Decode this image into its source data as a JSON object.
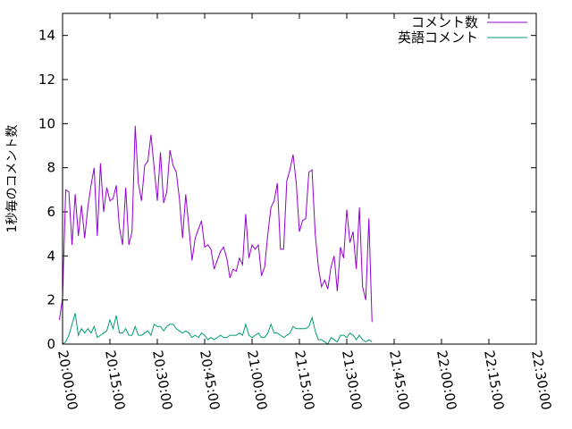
{
  "chart_data": {
    "type": "line",
    "ylabel": "1秒毎のコメント数",
    "ylim": [
      0,
      15
    ],
    "yticks": [
      0,
      2,
      4,
      6,
      8,
      10,
      12,
      14
    ],
    "xlim": [
      "20:00:00",
      "22:30:00"
    ],
    "xticks": [
      "20:00:00",
      "20:15:00",
      "20:30:00",
      "20:45:00",
      "21:00:00",
      "21:15:00",
      "21:30:00",
      "21:45:00",
      "22:00:00",
      "22:15:00",
      "22:30:00"
    ],
    "grid": false,
    "legend_position": "top-right",
    "series": [
      {
        "name": "コメント数",
        "color": "#9400d3",
        "points": [
          [
            "19:59:00",
            1.1
          ],
          [
            "20:00:00",
            2.1
          ],
          [
            "20:01:00",
            7.0
          ],
          [
            "20:02:00",
            6.9
          ],
          [
            "20:03:00",
            4.5
          ],
          [
            "20:04:00",
            6.8
          ],
          [
            "20:05:00",
            4.9
          ],
          [
            "20:06:00",
            6.3
          ],
          [
            "20:07:00",
            4.8
          ],
          [
            "20:08:00",
            6.2
          ],
          [
            "20:09:00",
            7.2
          ],
          [
            "20:10:00",
            8.0
          ],
          [
            "20:11:00",
            4.9
          ],
          [
            "20:12:00",
            8.2
          ],
          [
            "20:13:00",
            6.0
          ],
          [
            "20:14:00",
            7.1
          ],
          [
            "20:15:00",
            6.5
          ],
          [
            "20:16:00",
            6.6
          ],
          [
            "20:17:00",
            7.2
          ],
          [
            "20:18:00",
            5.3
          ],
          [
            "20:19:00",
            4.5
          ],
          [
            "20:20:00",
            7.1
          ],
          [
            "20:21:00",
            4.5
          ],
          [
            "20:22:00",
            5.1
          ],
          [
            "20:23:00",
            9.9
          ],
          [
            "20:24:00",
            7.3
          ],
          [
            "20:25:00",
            6.5
          ],
          [
            "20:26:00",
            8.1
          ],
          [
            "20:27:00",
            8.3
          ],
          [
            "20:28:00",
            9.5
          ],
          [
            "20:29:00",
            8.0
          ],
          [
            "20:30:00",
            6.5
          ],
          [
            "20:31:00",
            8.7
          ],
          [
            "20:32:00",
            6.4
          ],
          [
            "20:33:00",
            6.9
          ],
          [
            "20:34:00",
            8.8
          ],
          [
            "20:35:00",
            8.1
          ],
          [
            "20:36:00",
            7.8
          ],
          [
            "20:37:00",
            6.6
          ],
          [
            "20:38:00",
            4.8
          ],
          [
            "20:39:00",
            6.8
          ],
          [
            "20:40:00",
            5.3
          ],
          [
            "20:41:00",
            3.8
          ],
          [
            "20:42:00",
            4.8
          ],
          [
            "20:43:00",
            5.2
          ],
          [
            "20:44:00",
            5.6
          ],
          [
            "20:45:00",
            4.4
          ],
          [
            "20:46:00",
            4.5
          ],
          [
            "20:47:00",
            4.3
          ],
          [
            "20:48:00",
            3.4
          ],
          [
            "20:49:00",
            3.8
          ],
          [
            "20:50:00",
            4.2
          ],
          [
            "20:51:00",
            4.4
          ],
          [
            "20:52:00",
            3.9
          ],
          [
            "20:53:00",
            3.0
          ],
          [
            "20:54:00",
            3.4
          ],
          [
            "20:55:00",
            3.3
          ],
          [
            "20:56:00",
            3.9
          ],
          [
            "20:57:00",
            3.6
          ],
          [
            "20:58:00",
            5.9
          ],
          [
            "20:59:00",
            3.9
          ],
          [
            "21:00:00",
            4.5
          ],
          [
            "21:01:00",
            4.3
          ],
          [
            "21:02:00",
            4.5
          ],
          [
            "21:03:00",
            3.1
          ],
          [
            "21:04:00",
            3.5
          ],
          [
            "21:05:00",
            5.0
          ],
          [
            "21:06:00",
            6.2
          ],
          [
            "21:07:00",
            6.5
          ],
          [
            "21:08:00",
            7.3
          ],
          [
            "21:09:00",
            4.3
          ],
          [
            "21:10:00",
            4.3
          ],
          [
            "21:11:00",
            7.4
          ],
          [
            "21:12:00",
            7.9
          ],
          [
            "21:13:00",
            8.6
          ],
          [
            "21:14:00",
            7.3
          ],
          [
            "21:15:00",
            5.1
          ],
          [
            "21:16:00",
            5.6
          ],
          [
            "21:17:00",
            5.7
          ],
          [
            "21:18:00",
            7.8
          ],
          [
            "21:19:00",
            7.9
          ],
          [
            "21:20:00",
            5.0
          ],
          [
            "21:21:00",
            3.5
          ],
          [
            "21:22:00",
            2.6
          ],
          [
            "21:23:00",
            2.9
          ],
          [
            "21:24:00",
            2.5
          ],
          [
            "21:25:00",
            3.5
          ],
          [
            "21:26:00",
            4.0
          ],
          [
            "21:27:00",
            2.4
          ],
          [
            "21:28:00",
            4.4
          ],
          [
            "21:29:00",
            3.9
          ],
          [
            "21:30:00",
            6.1
          ],
          [
            "21:31:00",
            4.6
          ],
          [
            "21:32:00",
            5.1
          ],
          [
            "21:33:00",
            3.4
          ],
          [
            "21:34:00",
            6.2
          ],
          [
            "21:35:00",
            2.6
          ],
          [
            "21:36:00",
            2.0
          ],
          [
            "21:37:00",
            5.7
          ],
          [
            "21:38:00",
            1.0
          ]
        ]
      },
      {
        "name": "英語コメント",
        "color": "#009e73",
        "points": [
          [
            "20:00:00",
            0.0
          ],
          [
            "20:01:00",
            0.1
          ],
          [
            "20:02:00",
            0.4
          ],
          [
            "20:03:00",
            0.9
          ],
          [
            "20:04:00",
            1.4
          ],
          [
            "20:05:00",
            0.4
          ],
          [
            "20:06:00",
            0.7
          ],
          [
            "20:07:00",
            0.5
          ],
          [
            "20:08:00",
            0.7
          ],
          [
            "20:09:00",
            0.5
          ],
          [
            "20:10:00",
            0.8
          ],
          [
            "20:11:00",
            0.3
          ],
          [
            "20:12:00",
            0.4
          ],
          [
            "20:13:00",
            0.5
          ],
          [
            "20:14:00",
            0.6
          ],
          [
            "20:15:00",
            1.1
          ],
          [
            "20:16:00",
            0.7
          ],
          [
            "20:17:00",
            1.3
          ],
          [
            "20:18:00",
            0.5
          ],
          [
            "20:19:00",
            0.5
          ],
          [
            "20:20:00",
            0.7
          ],
          [
            "20:21:00",
            0.4
          ],
          [
            "20:22:00",
            0.4
          ],
          [
            "20:23:00",
            0.8
          ],
          [
            "20:24:00",
            0.4
          ],
          [
            "20:25:00",
            0.4
          ],
          [
            "20:26:00",
            0.5
          ],
          [
            "20:27:00",
            0.6
          ],
          [
            "20:28:00",
            0.4
          ],
          [
            "20:29:00",
            0.9
          ],
          [
            "20:30:00",
            0.8
          ],
          [
            "20:31:00",
            0.8
          ],
          [
            "20:32:00",
            0.6
          ],
          [
            "20:33:00",
            0.8
          ],
          [
            "20:34:00",
            0.9
          ],
          [
            "20:35:00",
            0.9
          ],
          [
            "20:36:00",
            0.7
          ],
          [
            "20:37:00",
            0.6
          ],
          [
            "20:38:00",
            0.5
          ],
          [
            "20:39:00",
            0.6
          ],
          [
            "20:40:00",
            0.5
          ],
          [
            "20:41:00",
            0.3
          ],
          [
            "20:42:00",
            0.4
          ],
          [
            "20:43:00",
            0.3
          ],
          [
            "20:44:00",
            0.5
          ],
          [
            "20:45:00",
            0.4
          ],
          [
            "20:46:00",
            0.2
          ],
          [
            "20:47:00",
            0.3
          ],
          [
            "20:48:00",
            0.2
          ],
          [
            "20:49:00",
            0.3
          ],
          [
            "20:50:00",
            0.4
          ],
          [
            "20:51:00",
            0.3
          ],
          [
            "20:52:00",
            0.3
          ],
          [
            "20:53:00",
            0.4
          ],
          [
            "20:54:00",
            0.4
          ],
          [
            "20:55:00",
            0.4
          ],
          [
            "20:56:00",
            0.5
          ],
          [
            "20:57:00",
            0.4
          ],
          [
            "20:58:00",
            0.9
          ],
          [
            "20:59:00",
            0.4
          ],
          [
            "21:00:00",
            0.3
          ],
          [
            "21:01:00",
            0.4
          ],
          [
            "21:02:00",
            0.5
          ],
          [
            "21:03:00",
            0.3
          ],
          [
            "21:04:00",
            0.3
          ],
          [
            "21:05:00",
            0.5
          ],
          [
            "21:06:00",
            0.9
          ],
          [
            "21:07:00",
            0.5
          ],
          [
            "21:08:00",
            0.5
          ],
          [
            "21:09:00",
            0.4
          ],
          [
            "21:10:00",
            0.3
          ],
          [
            "21:11:00",
            0.4
          ],
          [
            "21:12:00",
            0.5
          ],
          [
            "21:13:00",
            0.8
          ],
          [
            "21:14:00",
            0.7
          ],
          [
            "21:15:00",
            0.7
          ],
          [
            "21:16:00",
            0.7
          ],
          [
            "21:17:00",
            0.7
          ],
          [
            "21:18:00",
            0.8
          ],
          [
            "21:19:00",
            1.2
          ],
          [
            "21:20:00",
            0.6
          ],
          [
            "21:21:00",
            0.2
          ],
          [
            "21:22:00",
            0.2
          ],
          [
            "21:23:00",
            0.1
          ],
          [
            "21:24:00",
            0.0
          ],
          [
            "21:25:00",
            0.3
          ],
          [
            "21:26:00",
            0.2
          ],
          [
            "21:27:00",
            0.1
          ],
          [
            "21:28:00",
            0.4
          ],
          [
            "21:29:00",
            0.4
          ],
          [
            "21:30:00",
            0.3
          ],
          [
            "21:31:00",
            0.5
          ],
          [
            "21:32:00",
            0.4
          ],
          [
            "21:33:00",
            0.2
          ],
          [
            "21:34:00",
            0.4
          ],
          [
            "21:35:00",
            0.2
          ],
          [
            "21:36:00",
            0.1
          ],
          [
            "21:37:00",
            0.2
          ],
          [
            "21:38:00",
            0.1
          ]
        ]
      }
    ]
  }
}
